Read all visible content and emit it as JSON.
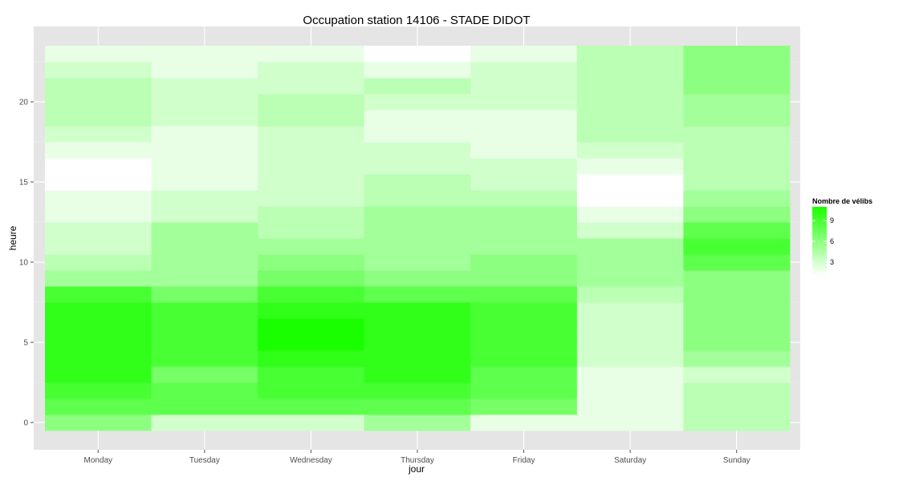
{
  "chart_data": {
    "type": "heatmap",
    "title": "Occupation station 14106 - STADE DIDOT",
    "xlabel": "jour",
    "ylabel": "heure",
    "x_categories": [
      "Monday",
      "Tuesday",
      "Wednesday",
      "Thursday",
      "Friday",
      "Saturday",
      "Sunday"
    ],
    "y_hours": [
      0,
      1,
      2,
      3,
      4,
      5,
      6,
      7,
      8,
      9,
      10,
      11,
      12,
      13,
      14,
      15,
      16,
      17,
      18,
      19,
      20,
      21,
      22,
      23
    ],
    "y_ticks": [
      "0",
      "5",
      "10",
      "15",
      "20"
    ],
    "y_range": [
      -0.5,
      23.5
    ],
    "grid": true,
    "legend": {
      "title": "Nombre de vélibs",
      "ticks": [
        "3",
        "6",
        "9"
      ],
      "range": [
        1,
        11
      ],
      "low_color": "#ffffff",
      "high_color": "#1aff00",
      "placement": "right"
    },
    "values": [
      [
        6,
        8,
        9,
        10,
        10,
        10,
        10,
        10,
        9,
        5,
        4,
        3,
        3,
        2,
        2,
        1,
        1,
        2,
        3,
        4,
        4,
        4,
        3,
        2
      ],
      [
        3,
        8,
        8,
        7,
        9,
        9,
        9,
        9,
        7,
        5,
        5,
        5,
        5,
        3,
        3,
        2,
        2,
        2,
        2,
        3,
        3,
        3,
        2,
        2
      ],
      [
        3,
        8,
        9,
        9,
        10,
        11,
        11,
        10,
        9,
        7,
        6,
        5,
        4,
        4,
        3,
        3,
        3,
        3,
        3,
        4,
        4,
        3,
        3,
        2
      ],
      [
        5,
        8,
        9,
        10,
        10,
        10,
        10,
        10,
        8,
        6,
        5,
        5,
        5,
        5,
        4,
        4,
        3,
        3,
        2,
        2,
        3,
        4,
        2,
        1
      ],
      [
        2,
        7,
        8,
        8,
        9,
        9,
        9,
        9,
        8,
        6,
        6,
        5,
        5,
        5,
        4,
        3,
        3,
        2,
        2,
        2,
        3,
        3,
        3,
        2
      ],
      [
        2,
        2,
        2,
        2,
        3,
        3,
        3,
        3,
        4,
        5,
        5,
        5,
        3,
        2,
        1,
        1,
        2,
        3,
        4,
        4,
        4,
        4,
        4,
        4
      ],
      [
        4,
        4,
        4,
        3,
        5,
        6,
        6,
        6,
        6,
        6,
        8,
        9,
        8,
        6,
        5,
        4,
        4,
        4,
        4,
        5,
        5,
        6,
        6,
        6
      ]
    ]
  }
}
